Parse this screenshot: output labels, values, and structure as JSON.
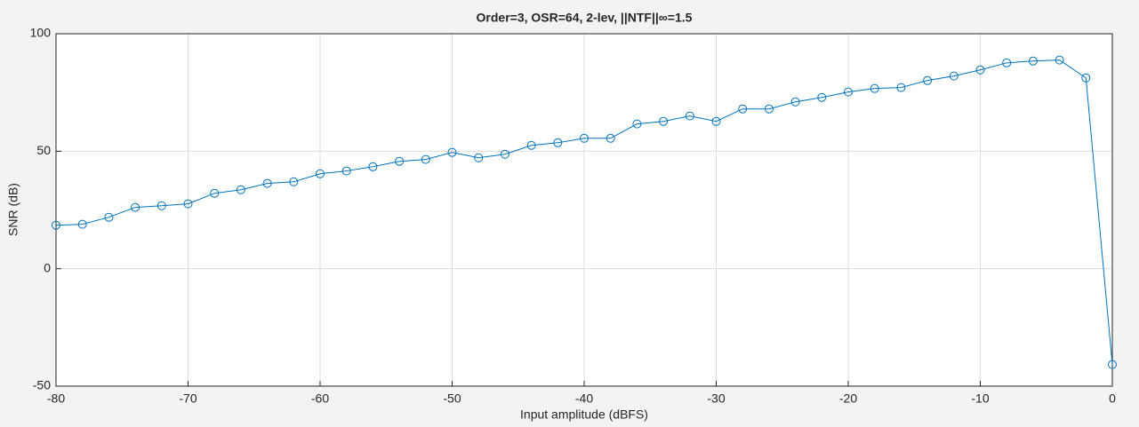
{
  "chart_data": {
    "type": "line",
    "title": "Order=3,  OSR=64,  2-lev,  ||NTF||∞=1.5",
    "x_label": "Input amplitude (dBFS)",
    "y_label": "SNR (dB)",
    "x": [
      -80,
      -78,
      -76,
      -74,
      -72,
      -70,
      -68,
      -66,
      -64,
      -62,
      -60,
      -58,
      -56,
      -54,
      -52,
      -50,
      -48,
      -46,
      -44,
      -42,
      -40,
      -38,
      -36,
      -34,
      -32,
      -30,
      -28,
      -26,
      -24,
      -22,
      -20,
      -18,
      -16,
      -14,
      -12,
      -10,
      -8,
      -6,
      -4,
      -2,
      0
    ],
    "series": [
      {
        "name": "SNR",
        "color": "#0072bd",
        "marker": "circle",
        "values": [
          18.5,
          18.9,
          21.9,
          26.1,
          26.8,
          27.6,
          32.1,
          33.6,
          36.3,
          37.0,
          40.4,
          41.6,
          43.4,
          45.7,
          46.5,
          49.5,
          47.2,
          48.7,
          52.5,
          53.6,
          55.5,
          55.5,
          61.6,
          62.7,
          65.0,
          62.7,
          68.0,
          68.0,
          71.0,
          72.9,
          75.2,
          76.7,
          77.1,
          80.1,
          82.0,
          84.6,
          87.6,
          88.4,
          88.8,
          81.2,
          -40.8
        ]
      }
    ],
    "xlim": [
      -80,
      0
    ],
    "xticks": [
      -80,
      -70,
      -60,
      -50,
      -40,
      -30,
      -20,
      -10,
      0
    ],
    "ylim": [
      -50,
      100
    ],
    "yticks": [
      -50,
      0,
      50,
      100
    ],
    "grid": true
  }
}
